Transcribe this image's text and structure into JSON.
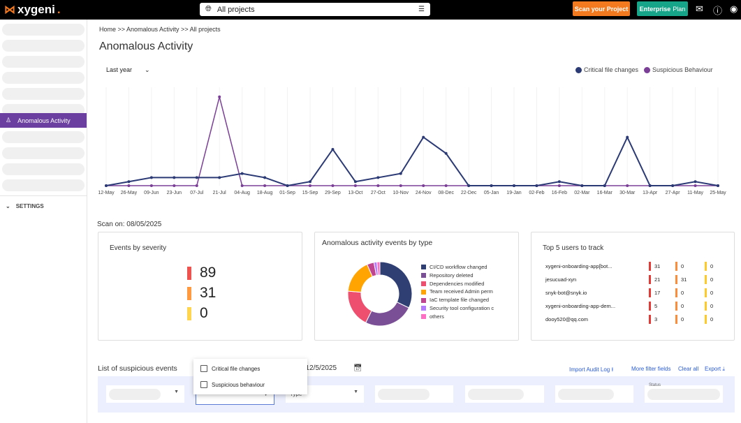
{
  "header": {
    "logo": "xygeni",
    "project_selector": "All projects",
    "scan_button": "Scan your Project",
    "plan_bold": "Enterprise",
    "plan_rest": "Plan",
    "icons": [
      "mail-icon",
      "help-icon",
      "user-icon"
    ]
  },
  "sidebar": {
    "active_item": "Anomalous Activity",
    "settings_label": "SETTINGS"
  },
  "breadcrumb": "Home >> Anomalous Activity >> All projects",
  "page_title": "Anomalous Activity",
  "range_select": "Last year",
  "colors": {
    "critical": "#2b3a75",
    "suspicious": "#7b3f98",
    "accent": "#6b3fa0"
  },
  "chart_data": {
    "type": "line",
    "x": [
      "12-May",
      "26-May",
      "09-Jun",
      "23-Jun",
      "07-Jul",
      "21-Jul",
      "04-Aug",
      "18-Aug",
      "01-Sep",
      "15-Sep",
      "29-Sep",
      "13-Oct",
      "27-Oct",
      "10-Nov",
      "24-Nov",
      "08-Dec",
      "22-Dec",
      "05-Jan",
      "19-Jan",
      "02-Feb",
      "16-Feb",
      "02-Mar",
      "16-Mar",
      "30-Mar",
      "13-Apr",
      "27-Apr",
      "11-May",
      "25-May"
    ],
    "series": [
      {
        "name": "Critical file changes",
        "color": "#2b3a75",
        "values": [
          0,
          1,
          2,
          2,
          2,
          2,
          3,
          2,
          0,
          1,
          9,
          1,
          2,
          3,
          12,
          8,
          0,
          0,
          0,
          0,
          1,
          0,
          0,
          12,
          0,
          0,
          1,
          0
        ]
      },
      {
        "name": "Suspicious Behaviour",
        "color": "#7b3f98",
        "values": [
          0,
          0,
          0,
          0,
          0,
          22,
          0,
          0,
          0,
          0,
          0,
          0,
          0,
          0,
          0,
          0,
          0,
          0,
          0,
          0,
          0,
          0,
          0,
          0,
          0,
          0,
          0,
          0
        ]
      }
    ],
    "ylim": [
      0,
      23
    ],
    "grid": "vertical",
    "legend": "top-right"
  },
  "scan_on": "Scan on: 08/05/2025",
  "severity": {
    "title": "Events by severity",
    "items": [
      {
        "value": "89",
        "color": "#ef5350"
      },
      {
        "value": "31",
        "color": "#ff9a40"
      },
      {
        "value": "0",
        "color": "#ffd54f"
      }
    ]
  },
  "by_type": {
    "title": "Anomalous activity events by type",
    "slices": [
      {
        "label": "CI/CD workflow changed",
        "value": 32,
        "color": "#2f3f73"
      },
      {
        "label": "Repository deleted",
        "value": 25,
        "color": "#7a4f96"
      },
      {
        "label": "Dependencies modified",
        "value": 19,
        "color": "#ef4f6e"
      },
      {
        "label": "Team received Admin perm",
        "value": 17,
        "color": "#ffa400"
      },
      {
        "label": "IaC template file changed",
        "value": 3.5,
        "color": "#c0448f"
      },
      {
        "label": "Security tool configuration c",
        "value": 1.5,
        "color": "#b57bff"
      },
      {
        "label": "others",
        "value": 1.5,
        "color": "#ff6fc3"
      }
    ]
  },
  "top_users": {
    "title": "Top 5 users to track",
    "rows": [
      {
        "user": "xygeni-onboarding-app[bot...",
        "c": "31",
        "h": "0",
        "m": "0"
      },
      {
        "user": "jesucuad-xyn",
        "c": "21",
        "h": "31",
        "m": "0"
      },
      {
        "user": "snyk-bot@snyk.io",
        "c": "17",
        "h": "0",
        "m": "0"
      },
      {
        "user": "xygeni-onboarding-app-dem...",
        "c": "5",
        "h": "0",
        "m": "0"
      },
      {
        "user": "dooy520@qq.com",
        "c": "3",
        "h": "0",
        "m": "0"
      }
    ]
  },
  "events": {
    "title": "List of suspicious events",
    "date": ": 12/5/2025",
    "import": "Import Audit Log",
    "more": "More filter fields",
    "clear": "Clear all",
    "export": "Export",
    "type_label": "Type",
    "status_label": "Status",
    "dropdown": [
      "Critical file changes",
      "Suspicious behaviour"
    ]
  }
}
